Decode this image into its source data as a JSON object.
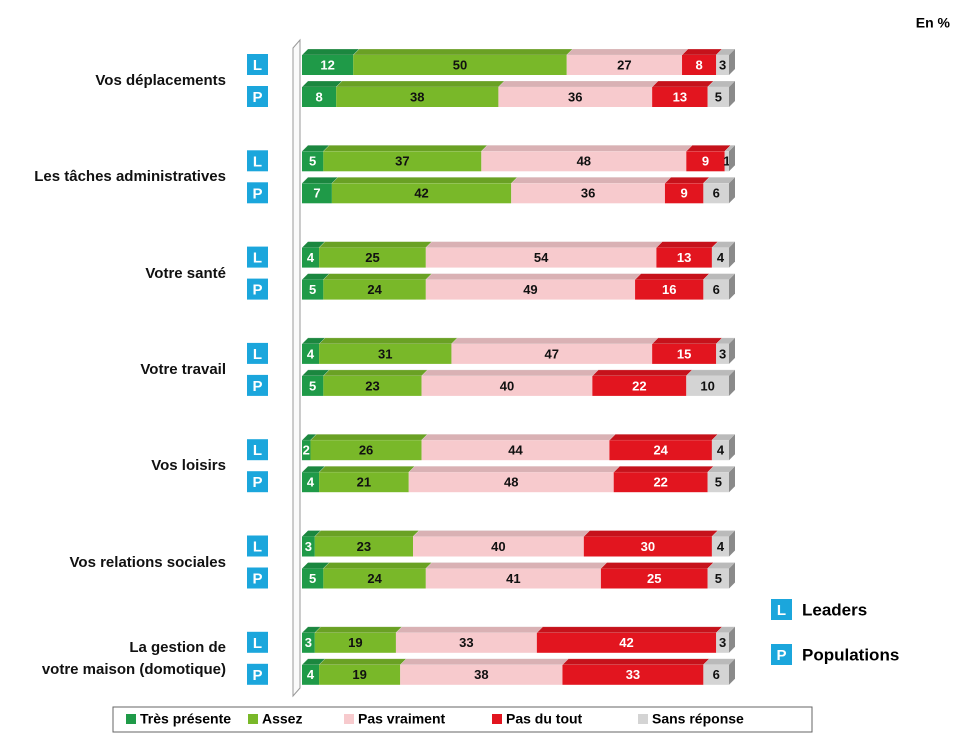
{
  "chart_data": {
    "type": "bar",
    "stacked": true,
    "orientation": "horizontal",
    "unit_note": "En %",
    "categories": [
      "Vos déplacements",
      "Les tâches administratives",
      "Votre santé",
      "Votre travail",
      "Vos loisirs",
      "Vos relations sociales",
      "La gestion de\nvotre maison (domotique)"
    ],
    "subgroups": [
      {
        "badge": "L",
        "name": "Leaders"
      },
      {
        "badge": "P",
        "name": "Populations"
      }
    ],
    "badge_color": "#1ba6dc",
    "series": [
      {
        "name": "Très présente",
        "color": "#1f9a48",
        "values": [
          [
            12,
            8
          ],
          [
            5,
            7
          ],
          [
            4,
            5
          ],
          [
            4,
            5
          ],
          [
            2,
            4
          ],
          [
            3,
            5
          ],
          [
            3,
            4
          ]
        ]
      },
      {
        "name": "Assez",
        "color": "#79b829",
        "values": [
          [
            50,
            38
          ],
          [
            37,
            42
          ],
          [
            25,
            24
          ],
          [
            31,
            23
          ],
          [
            26,
            21
          ],
          [
            23,
            24
          ],
          [
            19,
            19
          ]
        ]
      },
      {
        "name": "Pas vraiment",
        "color": "#f7cacd",
        "values": [
          [
            27,
            36
          ],
          [
            48,
            36
          ],
          [
            54,
            49
          ],
          [
            47,
            40
          ],
          [
            44,
            48
          ],
          [
            40,
            41
          ],
          [
            33,
            38
          ]
        ]
      },
      {
        "name": "Pas du tout",
        "color": "#e2151f",
        "values": [
          [
            8,
            13
          ],
          [
            9,
            9
          ],
          [
            13,
            16
          ],
          [
            15,
            22
          ],
          [
            24,
            22
          ],
          [
            30,
            25
          ],
          [
            42,
            33
          ]
        ]
      },
      {
        "name": "Sans réponse",
        "color": "#d4d4d4",
        "values": [
          [
            3,
            5
          ],
          [
            1,
            6
          ],
          [
            4,
            6
          ],
          [
            3,
            10
          ],
          [
            4,
            5
          ],
          [
            4,
            5
          ],
          [
            3,
            6
          ]
        ]
      }
    ]
  }
}
